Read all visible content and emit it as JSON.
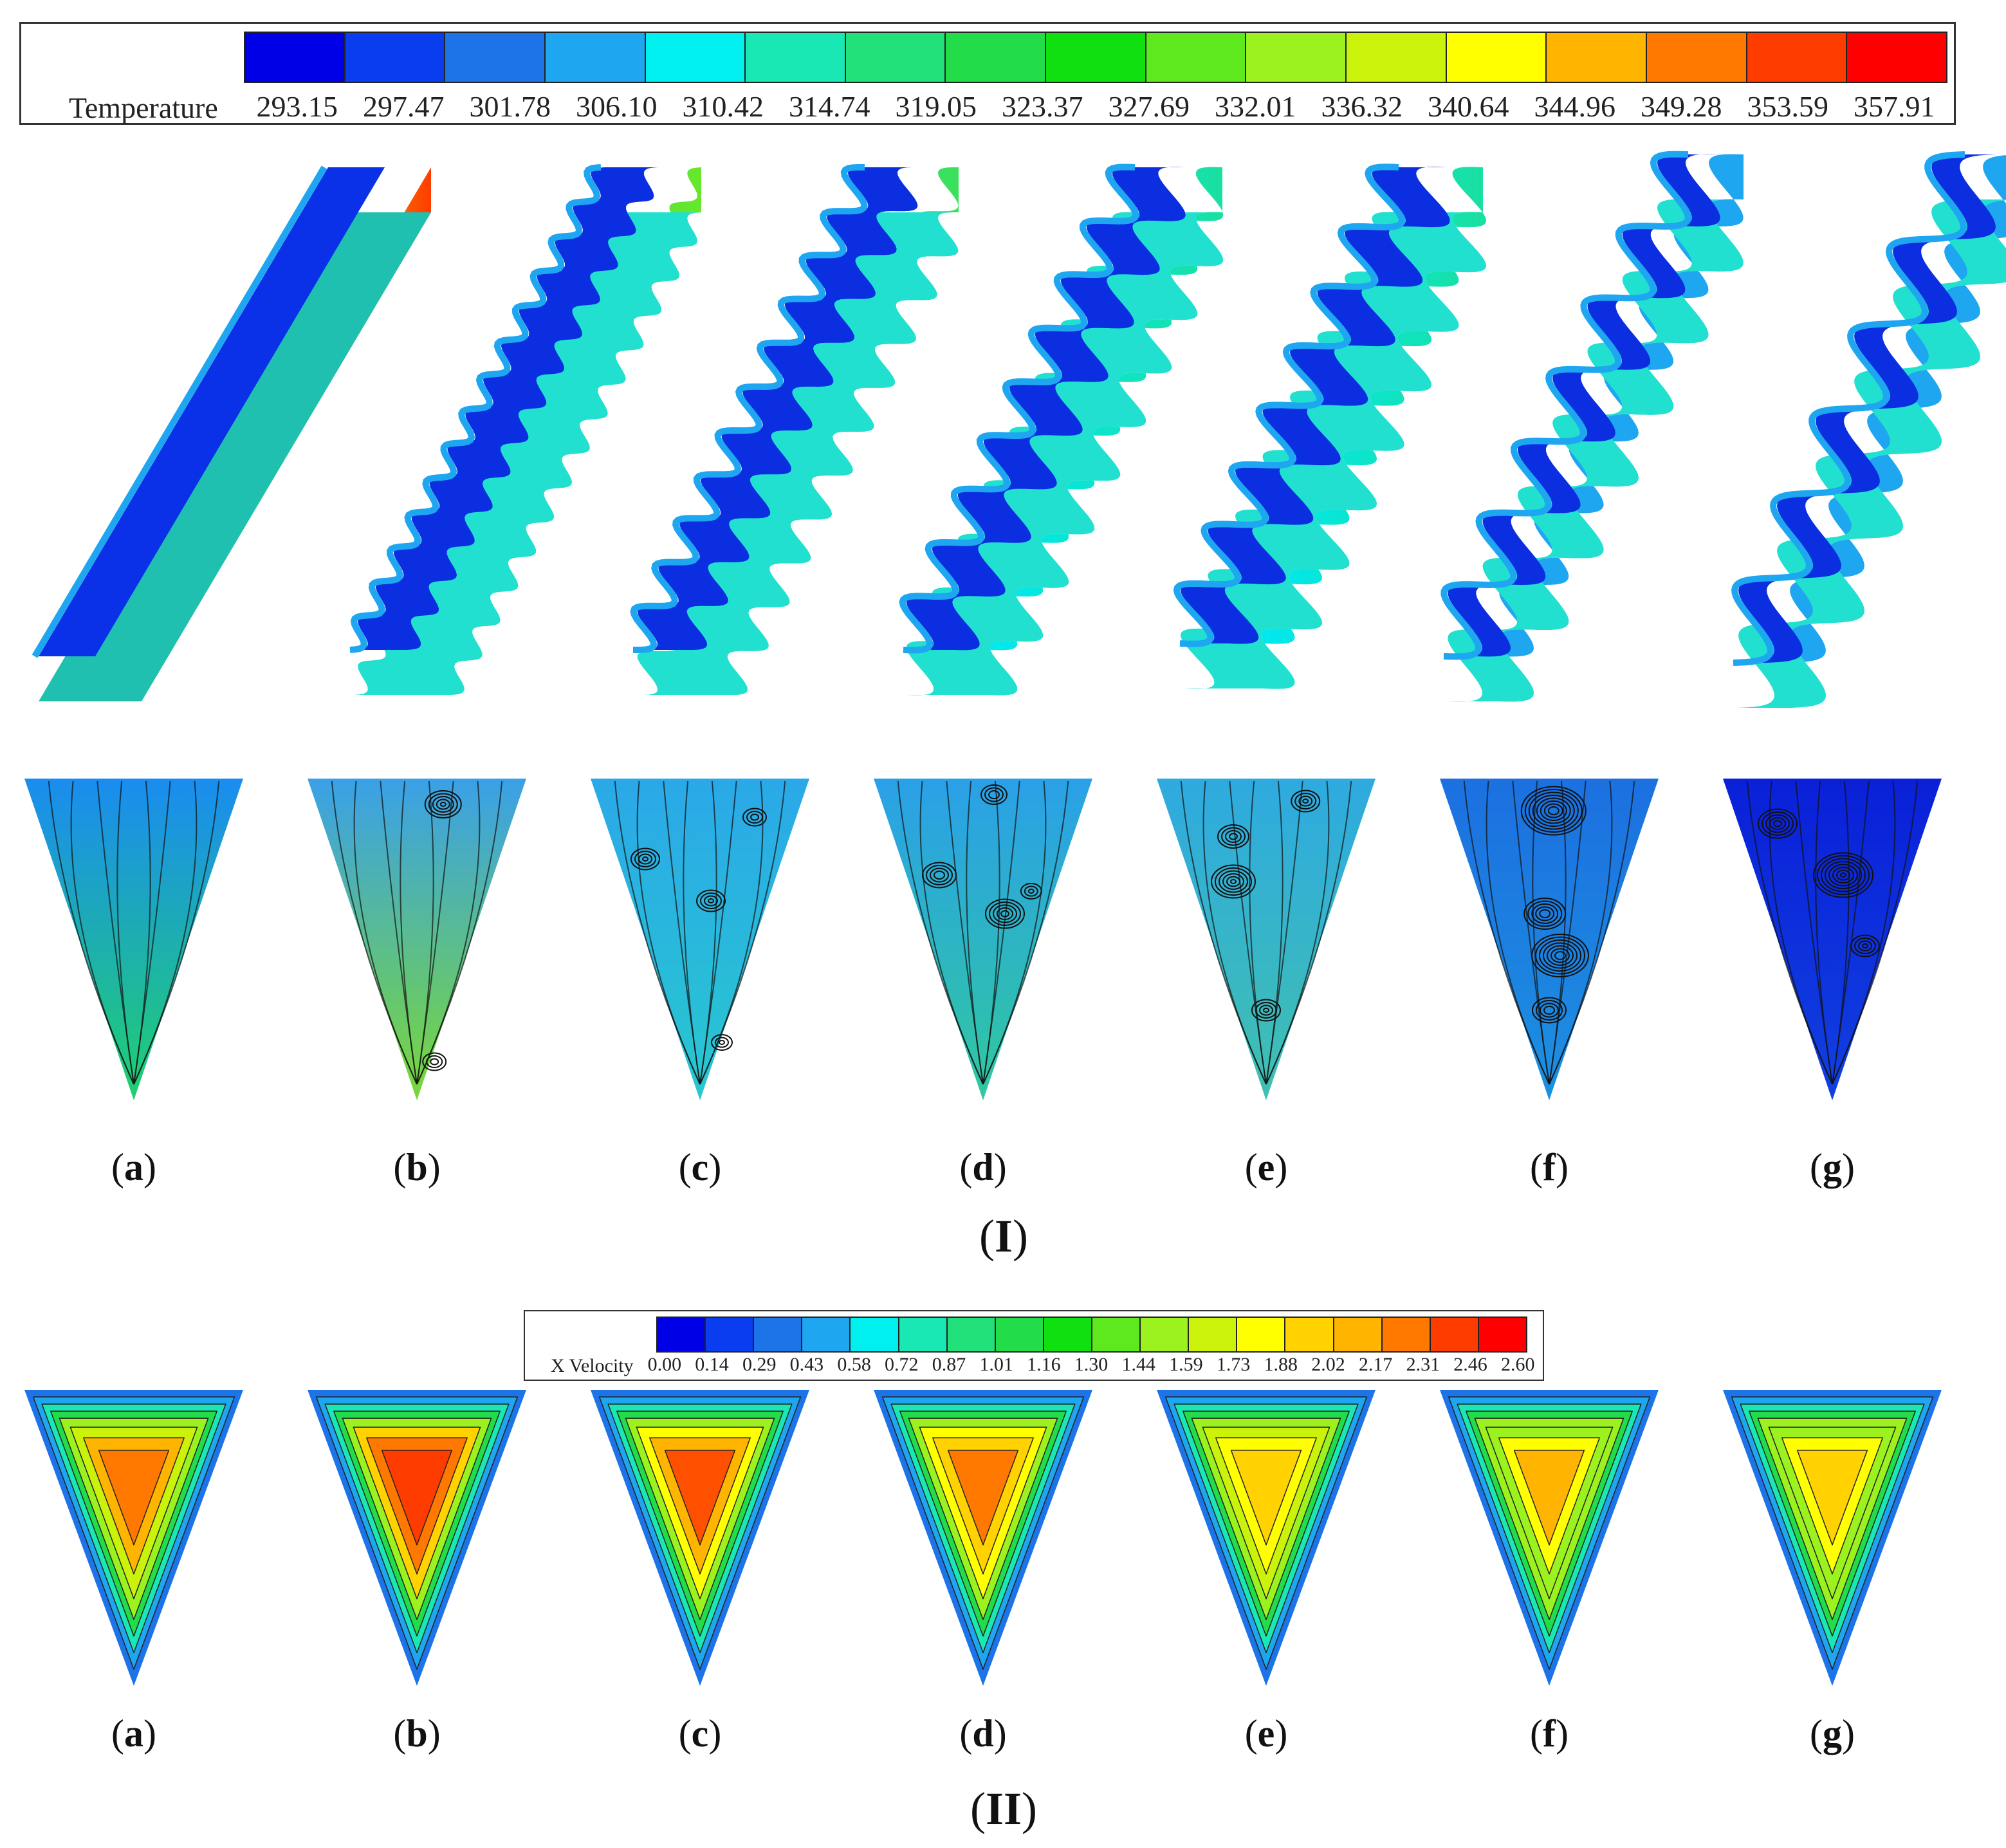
{
  "temperature_legend": {
    "title": "Temperature",
    "ticks": [
      "293.15",
      "297.47",
      "301.78",
      "306.10",
      "310.42",
      "314.74",
      "319.05",
      "323.37",
      "327.69",
      "332.01",
      "336.32",
      "340.64",
      "344.96",
      "349.28",
      "353.59",
      "357.91"
    ],
    "colors": [
      "#0000e6",
      "#0a3df0",
      "#1c74e8",
      "#1ea6f0",
      "#00f0f0",
      "#1ae8b4",
      "#22e07a",
      "#22dc4a",
      "#10e010",
      "#5ee81e",
      "#9cf21e",
      "#caf20a",
      "#ffff00",
      "#ffb400",
      "#ff7800",
      "#ff3c00",
      "#ff0000"
    ]
  },
  "velocity_legend": {
    "title": "X Velocity",
    "ticks": [
      "0.00",
      "0.14",
      "0.29",
      "0.43",
      "0.58",
      "0.72",
      "0.87",
      "1.01",
      "1.16",
      "1.30",
      "1.44",
      "1.59",
      "1.73",
      "1.88",
      "2.02",
      "2.17",
      "2.31",
      "2.46",
      "2.60"
    ],
    "colors": [
      "#0000e6",
      "#0a3df0",
      "#1c74e8",
      "#1ea6f0",
      "#00f0f0",
      "#1ae8b4",
      "#22e07a",
      "#22dc4a",
      "#10e010",
      "#5ee81e",
      "#9cf21e",
      "#caf20a",
      "#ffff00",
      "#ffd200",
      "#ffb400",
      "#ff7800",
      "#ff3c00",
      "#ff0000"
    ]
  },
  "panel_labels_I": [
    {
      "open": "(",
      "letter": "a",
      "close": ")"
    },
    {
      "open": "(",
      "letter": "b",
      "close": ")"
    },
    {
      "open": "(",
      "letter": "c",
      "close": ")"
    },
    {
      "open": "(",
      "letter": "d",
      "close": ")"
    },
    {
      "open": "(",
      "letter": "e",
      "close": ")"
    },
    {
      "open": "(",
      "letter": "f",
      "close": ")"
    },
    {
      "open": "(",
      "letter": "g",
      "close": ")"
    }
  ],
  "panel_labels_II": [
    {
      "open": "(",
      "letter": "a",
      "close": ")"
    },
    {
      "open": "(",
      "letter": "b",
      "close": ")"
    },
    {
      "open": "(",
      "letter": "c",
      "close": ")"
    },
    {
      "open": "(",
      "letter": "d",
      "close": ")"
    },
    {
      "open": "(",
      "letter": "e",
      "close": ")"
    },
    {
      "open": "(",
      "letter": "f",
      "close": ")"
    },
    {
      "open": "(",
      "letter": "g",
      "close": ")"
    }
  ],
  "group_labels": {
    "I": {
      "open": "(",
      "roman": "I",
      "close": ")"
    },
    "II": {
      "open": "(",
      "roman": "II",
      "close": ")"
    }
  }
}
